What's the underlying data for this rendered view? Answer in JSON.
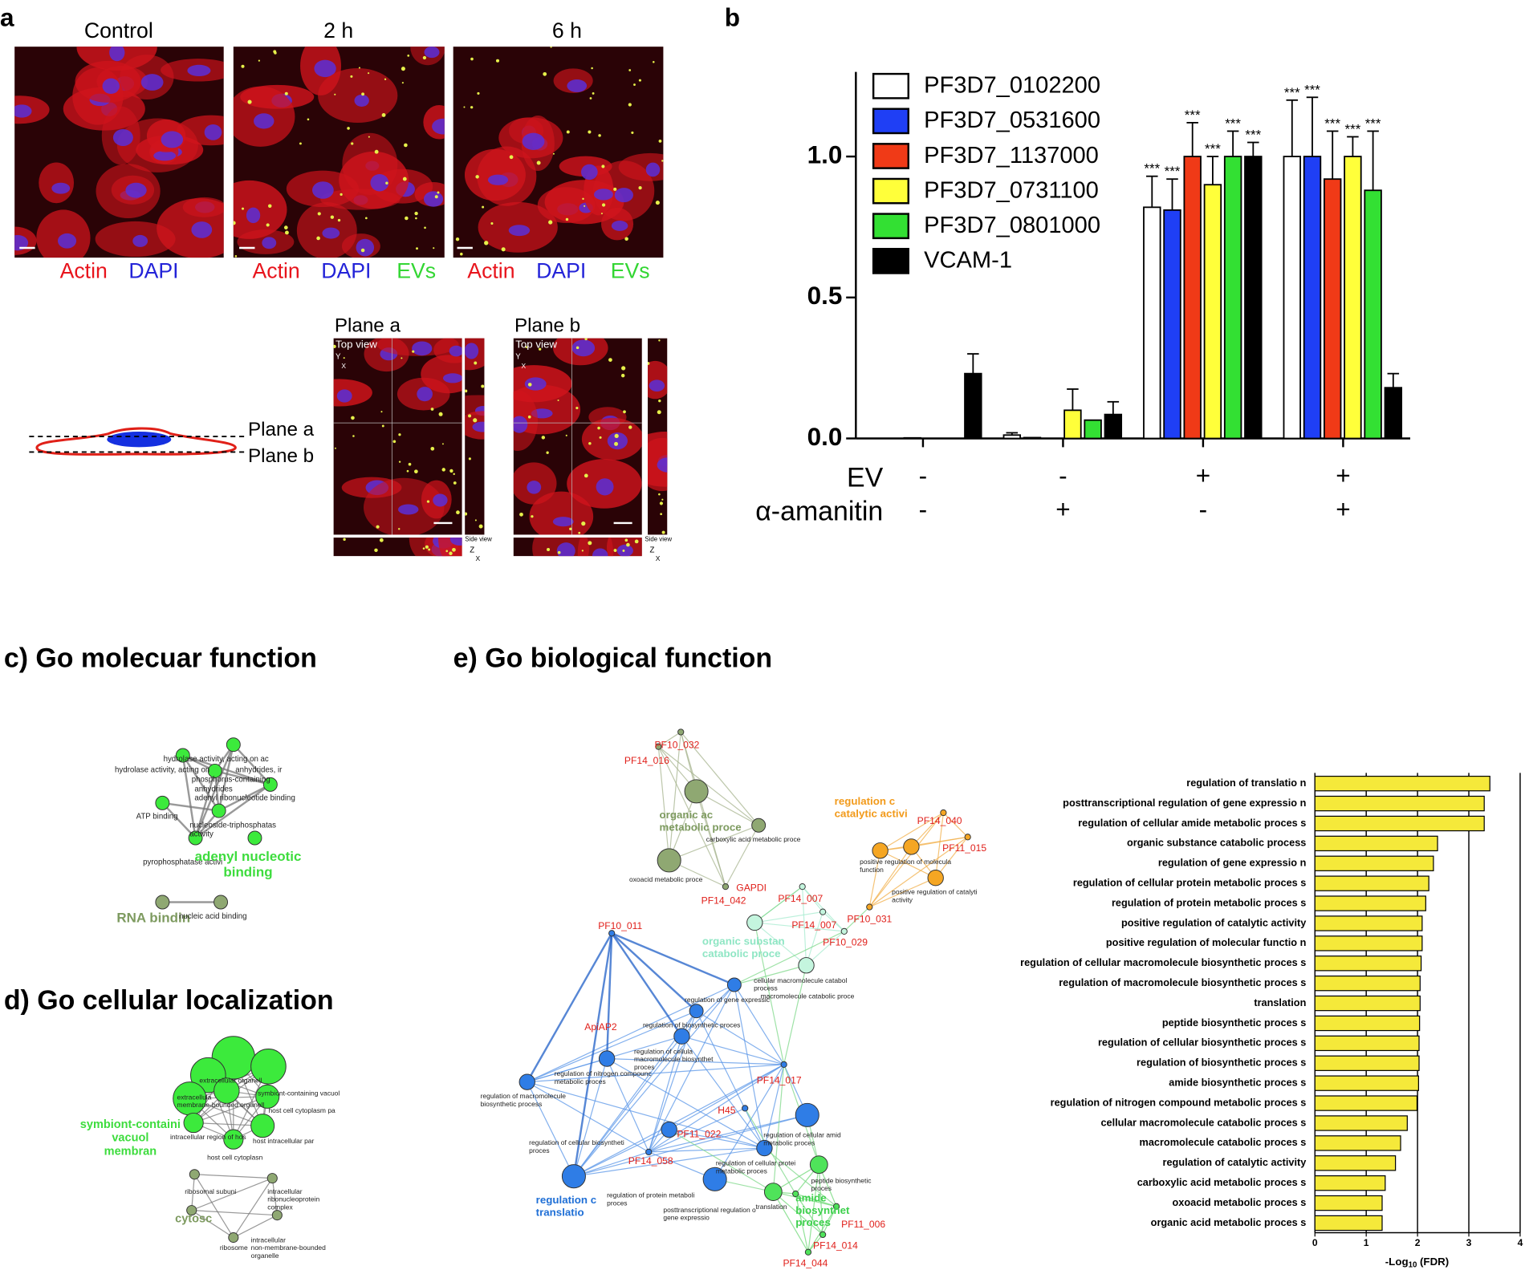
{
  "panel_letters": [
    "a",
    "b"
  ],
  "panel_a": {
    "titles": [
      "Control",
      "2 h",
      "6 h"
    ],
    "stains": [
      [
        "Actin",
        "DAPI"
      ],
      [
        "Actin",
        "DAPI",
        "EVs"
      ],
      [
        "Actin",
        "DAPI",
        "EVs"
      ]
    ],
    "plane_titles": [
      "Plane a",
      "Plane b"
    ],
    "top_view": "Top view",
    "side_view": "Side view",
    "axes_top": [
      "Y",
      "X"
    ],
    "axes_side": [
      "Z",
      "X"
    ],
    "diagram_planes": [
      "Plane a",
      "Plane b"
    ]
  },
  "chart_data": [
    {
      "type": "bar",
      "ylim": [
        0,
        1.3
      ],
      "yticks": [
        {
          "value": 0,
          "label": "0.0"
        },
        0.5,
        {
          "value": 1,
          "label": "1.0"
        }
      ],
      "series": [
        {
          "name": "PF3D7_0102200",
          "color": "#ffffff",
          "values": [
            0,
            0.012,
            0.82,
            1.0
          ],
          "errors": [
            0,
            0.008,
            0.11,
            0.2
          ],
          "labels": [
            null,
            null,
            "***",
            "***"
          ]
        },
        {
          "name": "PF3D7_0531600",
          "color": "#1f3ff5",
          "values": [
            0,
            0.003,
            0.81,
            1.0
          ],
          "errors": [
            0,
            0,
            0.11,
            0.21
          ],
          "labels": [
            null,
            null,
            "***",
            "***"
          ]
        },
        {
          "name": "PF3D7_1137000",
          "color": "#f03a17",
          "values": [
            0.002,
            0,
            1.0,
            0.92
          ],
          "errors": [
            0,
            0,
            0.12,
            0.17
          ],
          "labels": [
            null,
            null,
            "***",
            "***"
          ]
        },
        {
          "name": "PF3D7_0731100",
          "color": "#ffff3a",
          "values": [
            0,
            0.1,
            0.9,
            1.0
          ],
          "errors": [
            0,
            0.075,
            0.1,
            0.07
          ],
          "labels": [
            null,
            null,
            "***",
            "***"
          ]
        },
        {
          "name": "PF3D7_0801000",
          "color": "#33e033",
          "values": [
            0,
            0.065,
            1.0,
            0.88
          ],
          "errors": [
            0,
            0,
            0.09,
            0.21
          ],
          "labels": [
            null,
            null,
            "***",
            "***"
          ]
        },
        {
          "name": "VCAM-1",
          "color": "#000000",
          "values": [
            0.23,
            0.085,
            1.0,
            0.18
          ],
          "errors": [
            0.07,
            0.045,
            0.05,
            0.05
          ],
          "labels": [
            null,
            null,
            "***",
            null
          ]
        }
      ],
      "conditions": [
        {
          "name": "EV",
          "values": [
            "-",
            "-",
            "+",
            "+"
          ]
        },
        {
          "name": "α-amanitin",
          "values": [
            "-",
            "+",
            "-",
            "+"
          ]
        }
      ]
    },
    {
      "type": "hbar",
      "categories": [
        "regulation of translatio n",
        "posttranscriptional regulation of gene expressio n",
        "regulation of cellular amide metabolic proces s",
        "organic substance catabolic process",
        "regulation of gene expressio n",
        "regulation of cellular protein metabolic proces s",
        "regulation of protein metabolic proces s",
        "positive regulation of catalytic activity",
        "positive regulation of molecular functio n",
        "regulation of cellular macromolecule biosynthetic proces s",
        "regulation of macromolecule biosynthetic proces s",
        "translation",
        "peptide biosynthetic proces s",
        "regulation of cellular biosynthetic proces s",
        "regulation of biosynthetic proces s",
        "amide biosynthetic proces s",
        "regulation of nitrogen compound metabolic proces s",
        "cellular macromolecule catabolic proces s",
        "macromolecule catabolic proces s",
        "regulation of catalytic activity",
        "carboxylic acid metabolic proces s",
        "oxoacid metabolic proces s",
        "organic acid metabolic proces s"
      ],
      "values": [
        3.41,
        3.3,
        3.3,
        2.39,
        2.31,
        2.22,
        2.16,
        2.09,
        2.09,
        2.07,
        2.05,
        2.05,
        2.04,
        2.03,
        2.03,
        2.02,
        1.99,
        1.8,
        1.67,
        1.57,
        1.37,
        1.31,
        1.31
      ],
      "color": "#f5e93a",
      "xlim": [
        0,
        4
      ],
      "xticks": [
        0,
        1,
        2,
        3,
        4
      ],
      "grid": true,
      "xlabel": {
        "text": "-Log",
        "sub": "10",
        "rest": "(FDR)"
      }
    }
  ],
  "go_molecular": {
    "title": "c) Go molecuar function",
    "labels": [
      [
        "hydrolase activity, acting on ac"
      ],
      [
        "hydrolase activity, acting on"
      ],
      [
        "anhydrides, ir"
      ],
      [
        "phosphorus-containing"
      ],
      [
        "anhydrides"
      ],
      [
        "adenyl ribonucleotide binding"
      ],
      [
        "ATP binding"
      ],
      [
        "nucleoside-triphosphatas",
        "activity"
      ],
      [
        "pyrophosphatase activi"
      ],
      [
        "adenyl nucleotic",
        "binding"
      ],
      [
        "RNA bindin"
      ],
      [
        "nucleic acid binding"
      ]
    ]
  },
  "go_cellular": {
    "title": "d) Go cellular localization",
    "labels": [
      [
        "extracellular organell"
      ],
      [
        "symbiont-containing vacuol"
      ],
      [
        "extracellula",
        "membrane-bounded organell"
      ],
      [
        "host cell cytoplasm pa"
      ],
      [
        "symbiont-containi",
        "vacuol",
        "membran"
      ],
      [
        "intracellular region of hos"
      ],
      [
        "host intracellular par"
      ],
      [
        "host cell cytoplasn"
      ],
      [
        "ribosomal subuni"
      ],
      [
        "intracellular",
        "ribonucleoprotein",
        "complex"
      ],
      [
        "cytosc"
      ],
      [
        "ribosome"
      ],
      [
        "intracellular",
        "non-membrane-bounded",
        "organelle"
      ]
    ]
  },
  "go_biological": {
    "title": "e) Go biological function",
    "labels": [
      [
        "PF10_032"
      ],
      [
        "PF14_016"
      ],
      [
        "PF14_040"
      ],
      [
        "PF11_015"
      ],
      [
        "GAPDI"
      ],
      [
        "PF14_042"
      ],
      [
        "PF14_007"
      ],
      [
        "PF14_007"
      ],
      [
        "PF10_031"
      ],
      [
        "PF10_029"
      ],
      [
        "PF10_011"
      ],
      [
        "ApiAP2"
      ],
      [
        "PF14_017"
      ],
      [
        "H45"
      ],
      [
        "PF11_022"
      ],
      [
        "PF14_058"
      ],
      [
        "PF11_006"
      ],
      [
        "PF14_014"
      ],
      [
        "PF14_044"
      ],
      [
        "carboxylic acid metabolic proce"
      ],
      [
        "oxoacid metabolic proce"
      ],
      [
        "positive regulation of molecula",
        "function"
      ],
      [
        "positive regulation of catalyti",
        "activity"
      ],
      [
        "cellular macromolecule catabol",
        "process"
      ],
      [
        "macromolecule catabolic proce"
      ],
      [
        "regulation of gene expressic"
      ],
      [
        "regulation of biosynthetic proces"
      ],
      [
        "regulation of cellula",
        "macromolecule biosynthet",
        "proces"
      ],
      [
        "regulation of nitrogen compounc",
        "metabolic proces"
      ],
      [
        "regulation of macromolecule",
        "biosynthetic process"
      ],
      [
        "regulation of cellular biosyntheti",
        "proces"
      ],
      [
        "regulation of cellular amid",
        "metabolic proces"
      ],
      [
        "regulation of cellular protei",
        "metabolic proces"
      ],
      [
        "peptide biosynthetic",
        "proces"
      ],
      [
        "regulation of protein metaboli",
        "proces"
      ],
      [
        "posttranscriptional regulation o",
        "gene expressio"
      ],
      [
        "translation"
      ],
      [
        "organic ac",
        "metabolic proce"
      ],
      [
        "regulation c",
        "catalytic activi"
      ],
      [
        "organic substan",
        "catabolic proce"
      ],
      [
        "regulation c",
        "translatio"
      ],
      [
        "amide",
        "biosynthet",
        "proces"
      ]
    ]
  }
}
